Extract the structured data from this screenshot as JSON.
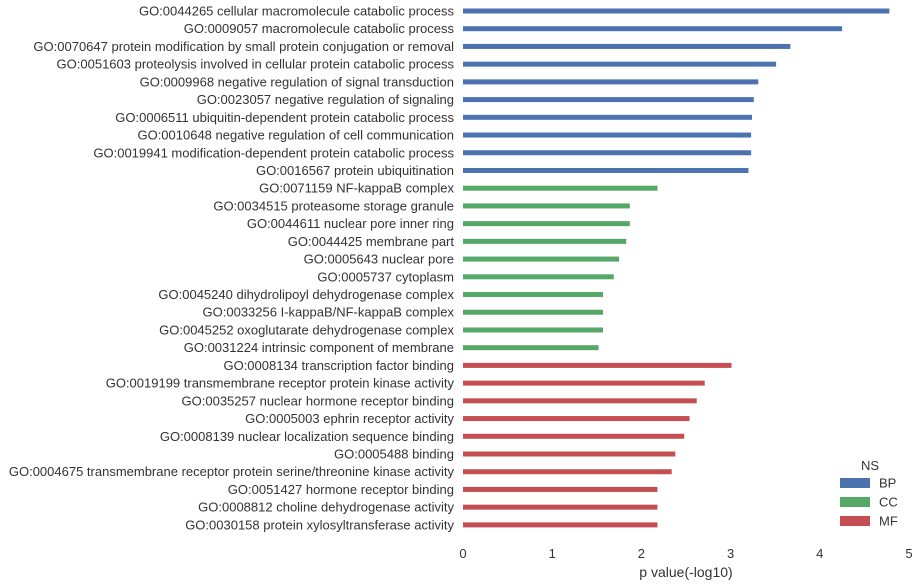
{
  "chart_data": {
    "type": "bar",
    "orientation": "horizontal",
    "xlabel": "p value(-log10)",
    "xlim": [
      0,
      5
    ],
    "xticks": [
      "0",
      "1",
      "2",
      "3",
      "4",
      "5"
    ],
    "grid": false,
    "legend": {
      "title": "NS",
      "placement": "bottom-right",
      "entries": [
        {
          "name": "BP",
          "color": "#4c72b0"
        },
        {
          "name": "CC",
          "color": "#55a868"
        },
        {
          "name": "MF",
          "color": "#c44e52"
        }
      ]
    },
    "bars": [
      {
        "label": "GO:0044265 cellular macromolecule catabolic process",
        "value": 4.78,
        "ns": "BP"
      },
      {
        "label": "GO:0009057 macromolecule catabolic process",
        "value": 4.25,
        "ns": "BP"
      },
      {
        "label": "GO:0070647 protein modification by small protein conjugation or removal",
        "value": 3.67,
        "ns": "BP"
      },
      {
        "label": "GO:0051603 proteolysis involved in cellular protein catabolic process",
        "value": 3.51,
        "ns": "BP"
      },
      {
        "label": "GO:0009968 negative regulation of signal transduction",
        "value": 3.31,
        "ns": "BP"
      },
      {
        "label": "GO:0023057 negative regulation of signaling",
        "value": 3.26,
        "ns": "BP"
      },
      {
        "label": "GO:0006511 ubiquitin-dependent protein catabolic process",
        "value": 3.24,
        "ns": "BP"
      },
      {
        "label": "GO:0010648 negative regulation of cell communication",
        "value": 3.23,
        "ns": "BP"
      },
      {
        "label": "GO:0019941 modification-dependent protein catabolic process",
        "value": 3.23,
        "ns": "BP"
      },
      {
        "label": "GO:0016567 protein ubiquitination",
        "value": 3.2,
        "ns": "BP"
      },
      {
        "label": "GO:0071159 NF-kappaB complex",
        "value": 2.18,
        "ns": "CC"
      },
      {
        "label": "GO:0034515 proteasome storage granule",
        "value": 1.87,
        "ns": "CC"
      },
      {
        "label": "GO:0044611 nuclear pore inner ring",
        "value": 1.87,
        "ns": "CC"
      },
      {
        "label": "GO:0044425 membrane part",
        "value": 1.83,
        "ns": "CC"
      },
      {
        "label": "GO:0005643 nuclear pore",
        "value": 1.75,
        "ns": "CC"
      },
      {
        "label": "GO:0005737 cytoplasm",
        "value": 1.69,
        "ns": "CC"
      },
      {
        "label": "GO:0045240 dihydrolipoyl dehydrogenase complex",
        "value": 1.57,
        "ns": "CC"
      },
      {
        "label": "GO:0033256 I-kappaB/NF-kappaB complex",
        "value": 1.57,
        "ns": "CC"
      },
      {
        "label": "GO:0045252 oxoglutarate dehydrogenase complex",
        "value": 1.57,
        "ns": "CC"
      },
      {
        "label": "GO:0031224 intrinsic component of membrane",
        "value": 1.52,
        "ns": "CC"
      },
      {
        "label": "GO:0008134 transcription factor binding",
        "value": 3.01,
        "ns": "MF"
      },
      {
        "label": "GO:0019199 transmembrane receptor protein kinase activity",
        "value": 2.71,
        "ns": "MF"
      },
      {
        "label": "GO:0035257 nuclear hormone receptor binding",
        "value": 2.62,
        "ns": "MF"
      },
      {
        "label": "GO:0005003 ephrin receptor activity",
        "value": 2.54,
        "ns": "MF"
      },
      {
        "label": "GO:0008139 nuclear localization sequence binding",
        "value": 2.48,
        "ns": "MF"
      },
      {
        "label": "GO:0005488 binding",
        "value": 2.38,
        "ns": "MF"
      },
      {
        "label": "GO:0004675 transmembrane receptor protein serine/threonine kinase activity",
        "value": 2.34,
        "ns": "MF"
      },
      {
        "label": "GO:0051427 hormone receptor binding",
        "value": 2.18,
        "ns": "MF"
      },
      {
        "label": "GO:0008812 choline dehydrogenase activity",
        "value": 2.18,
        "ns": "MF"
      },
      {
        "label": "GO:0030158 protein xylosyltransferase activity",
        "value": 2.18,
        "ns": "MF"
      }
    ]
  }
}
